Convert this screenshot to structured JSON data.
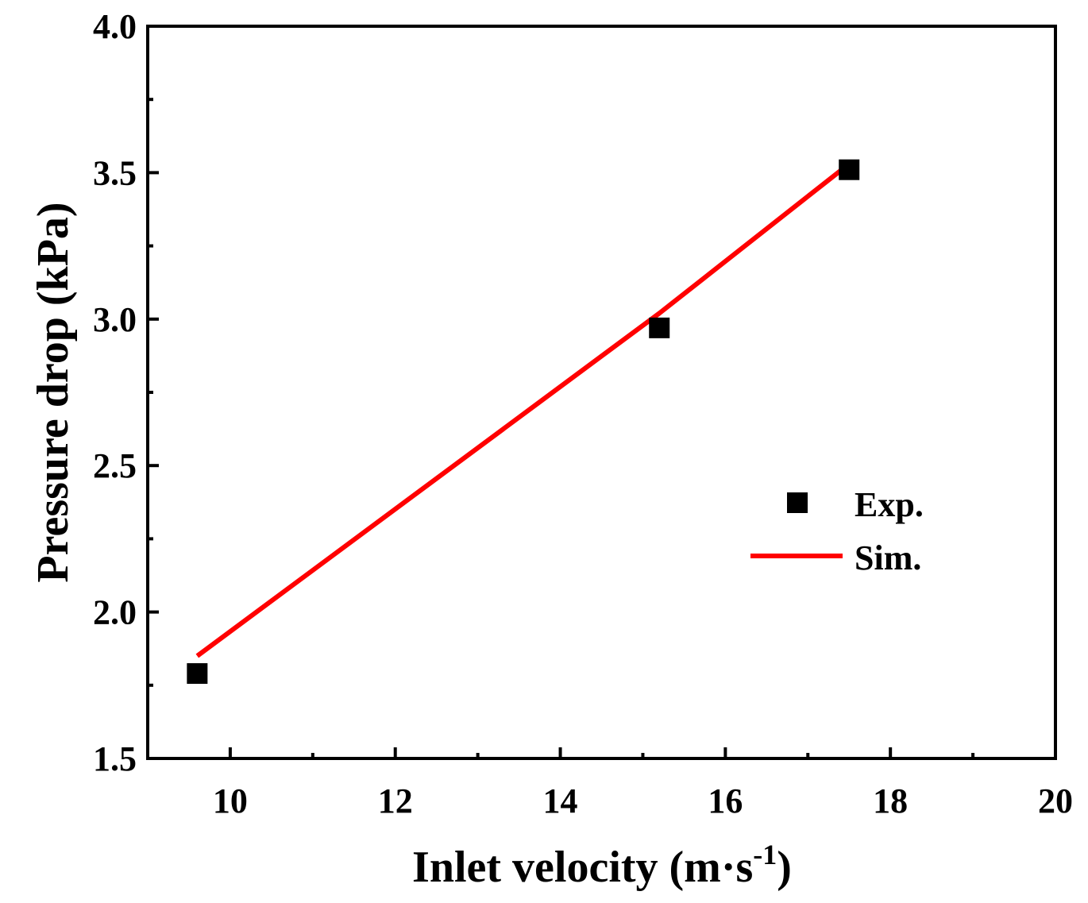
{
  "chart_data": {
    "type": "scatter",
    "title": "",
    "xlabel_main": "Inlet velocity (m·s",
    "xlabel_sup": "-1",
    "xlabel_close": ")",
    "ylabel": "Pressure drop (kPa)",
    "xlim": [
      9,
      20
    ],
    "ylim": [
      1.5,
      4.0
    ],
    "x_ticks": [
      10,
      12,
      14,
      16,
      18,
      20
    ],
    "x_tick_labels": [
      "10",
      "12",
      "14",
      "16",
      "18",
      "20"
    ],
    "x_minor_ticks": [
      11,
      13,
      15,
      17,
      19
    ],
    "y_ticks": [
      1.5,
      2.0,
      2.5,
      3.0,
      3.5,
      4.0
    ],
    "y_tick_labels": [
      "1.5",
      "2.0",
      "2.5",
      "3.0",
      "3.5",
      "4.0"
    ],
    "y_minor_ticks": [
      1.75,
      2.25,
      2.75,
      3.25,
      3.75
    ],
    "grid": false,
    "legend_position": "right",
    "series": [
      {
        "name": "Exp.",
        "kind": "scatter",
        "marker": "square",
        "color": "#000000",
        "x": [
          9.6,
          15.2,
          17.5
        ],
        "y": [
          1.79,
          2.97,
          3.51
        ]
      },
      {
        "name": "Sim.",
        "kind": "line",
        "color": "#ff0000",
        "x": [
          9.6,
          15.2,
          17.5
        ],
        "y": [
          1.85,
          3.02,
          3.53
        ]
      }
    ]
  }
}
